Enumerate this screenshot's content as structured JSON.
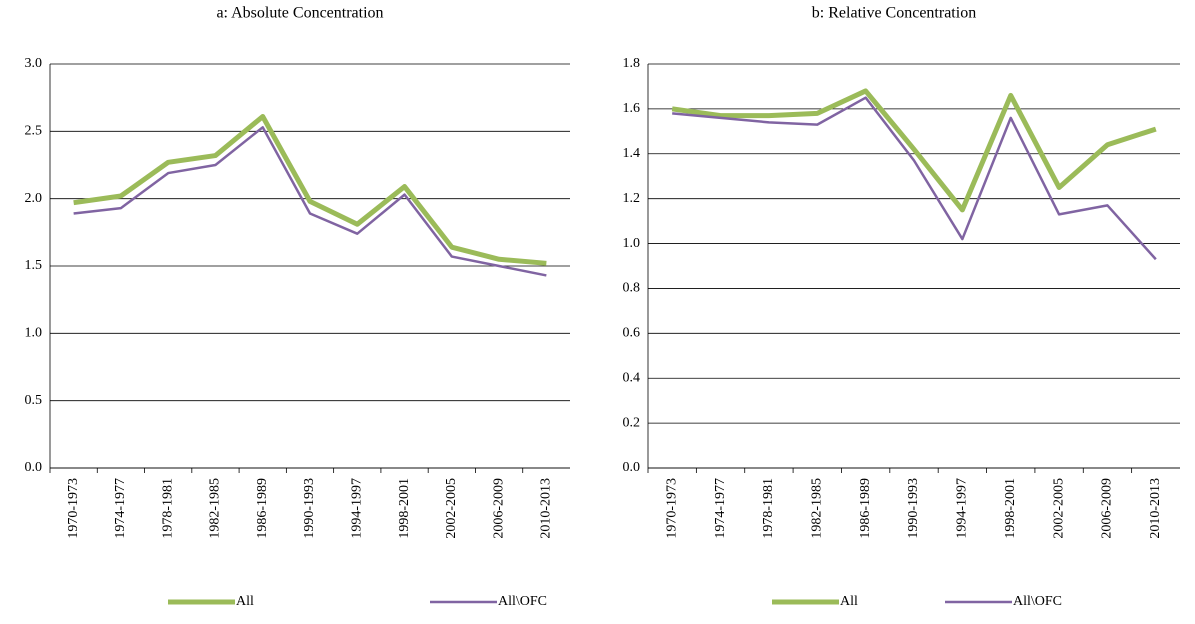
{
  "chart_data": [
    {
      "type": "line",
      "title": "a: Absolute Concentration",
      "categories": [
        "1970-1973",
        "1974-1977",
        "1978-1981",
        "1982-1985",
        "1986-1989",
        "1990-1993",
        "1994-1997",
        "1998-2001",
        "2002-2005",
        "2006-2009",
        "2010-2013"
      ],
      "series": [
        {
          "name": "All",
          "color": "#9bbb59",
          "values": [
            1.97,
            2.02,
            2.27,
            2.32,
            2.61,
            1.98,
            1.81,
            2.09,
            1.64,
            1.55,
            1.52
          ]
        },
        {
          "name": "All\\OFC",
          "color": "#8064a2",
          "values": [
            1.89,
            1.93,
            2.19,
            2.25,
            2.53,
            1.89,
            1.74,
            2.03,
            1.57,
            1.5,
            1.43
          ]
        }
      ],
      "ylim": [
        0,
        3
      ],
      "yticks": [
        {
          "value": 0,
          "label": "0.0"
        },
        0.5,
        {
          "value": 1,
          "label": "1.0"
        },
        1.5,
        {
          "value": 2,
          "label": "2.0"
        },
        2.5,
        {
          "value": 3,
          "label": "3.0"
        }
      ],
      "grid": true,
      "legend": "bottom"
    },
    {
      "type": "line",
      "title": "b: Relative Concentration",
      "categories": [
        "1970-1973",
        "1974-1977",
        "1978-1981",
        "1982-1985",
        "1986-1989",
        "1990-1993",
        "1994-1997",
        "1998-2001",
        "2002-2005",
        "2006-2009",
        "2010-2013"
      ],
      "series": [
        {
          "name": "All",
          "color": "#9bbb59",
          "values": [
            1.6,
            1.57,
            1.57,
            1.58,
            1.68,
            1.42,
            1.15,
            1.66,
            1.25,
            1.44,
            1.51
          ]
        },
        {
          "name": "All\\OFC",
          "color": "#8064a2",
          "values": [
            1.58,
            1.56,
            1.54,
            1.53,
            1.65,
            1.37,
            1.02,
            1.56,
            1.13,
            1.17,
            0.93
          ]
        }
      ],
      "ylim": [
        0,
        1.8
      ],
      "yticks": [
        {
          "value": 0,
          "label": "0.0"
        },
        0.2,
        0.4,
        0.6,
        0.8,
        {
          "value": 1,
          "label": "1.0"
        },
        1.2,
        1.4,
        1.6,
        1.8
      ],
      "grid": true,
      "legend": "bottom"
    }
  ]
}
